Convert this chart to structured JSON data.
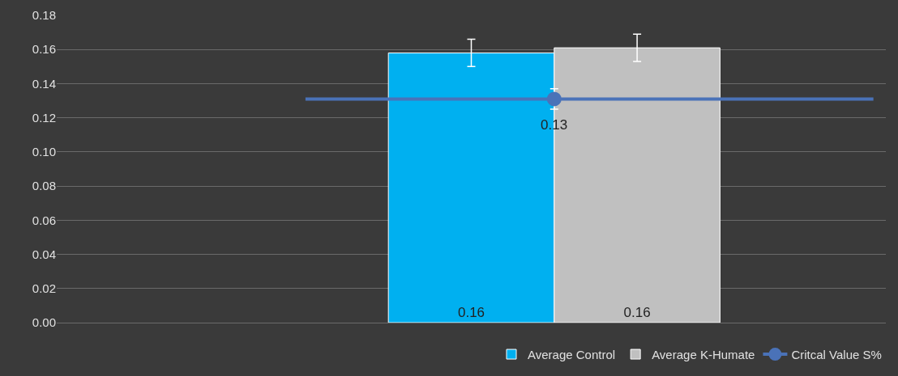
{
  "chart_data": {
    "type": "bar",
    "categories": [
      null
    ],
    "series": [
      {
        "name": "Average Control",
        "color": "#00b0f0",
        "values": [
          0.158
        ],
        "errors": [
          0.008
        ],
        "value_labels": [
          "0.16"
        ]
      },
      {
        "name": "Average K-Humate",
        "color": "#c0c0c0",
        "values": [
          0.161
        ],
        "errors": [
          0.008
        ],
        "value_labels": [
          "0.16"
        ]
      },
      {
        "name": "Critcal Value S%",
        "type": "line",
        "color": "#4a72b8",
        "values": [
          0.131
        ],
        "errors": [
          0.006
        ],
        "value_labels": [
          "0.13"
        ],
        "marker": "circle"
      }
    ],
    "ref_lines": [
      {
        "axis": "y",
        "value": 0.131,
        "color": "#4a72b8"
      }
    ],
    "ylim": [
      0,
      0.18
    ],
    "yticks": [
      {
        "value": 0,
        "label": "0.00"
      },
      {
        "value": 0.02,
        "label": "0.02"
      },
      {
        "value": 0.04,
        "label": "0.04"
      },
      {
        "value": 0.06,
        "label": "0.06"
      },
      {
        "value": 0.08,
        "label": "0.08"
      },
      {
        "value": 0.1,
        "label": "0.10"
      },
      {
        "value": 0.12,
        "label": "0.12"
      },
      {
        "value": 0.14,
        "label": "0.14"
      },
      {
        "value": 0.16,
        "label": "0.16"
      },
      {
        "value": 0.18,
        "label": "0.18"
      }
    ],
    "grid": "y",
    "legend": "bottom",
    "tick_labels": "y"
  }
}
